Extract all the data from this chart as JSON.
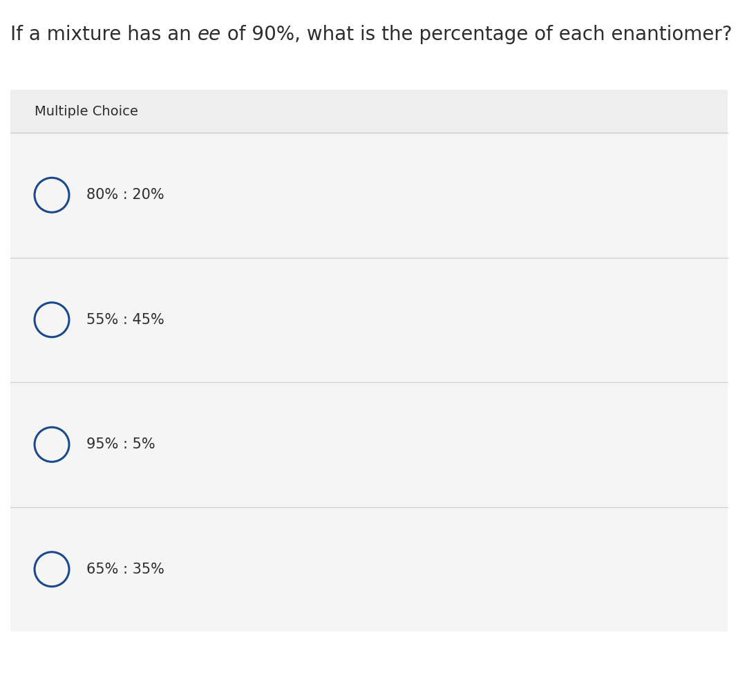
{
  "question_prefix": "If a mixture has an ",
  "question_ee": "ee",
  "question_suffix": " of 90%, what is the percentage of each enantiomer?",
  "section_label": "Multiple Choice",
  "choices": [
    "80% : 20%",
    "55% : 45%",
    "95% : 5%",
    "65% : 35%"
  ],
  "bg_color": "#ffffff",
  "panel_bg_color": "#eeeeee",
  "choice_bg_color": "#f5f5f5",
  "divider_color": "#cccccc",
  "circle_color": "#1a4a8a",
  "text_color": "#2d2d2d",
  "question_fontsize": 20,
  "label_fontsize": 14,
  "choice_fontsize": 15,
  "fig_width": 10.68,
  "fig_height": 9.84
}
